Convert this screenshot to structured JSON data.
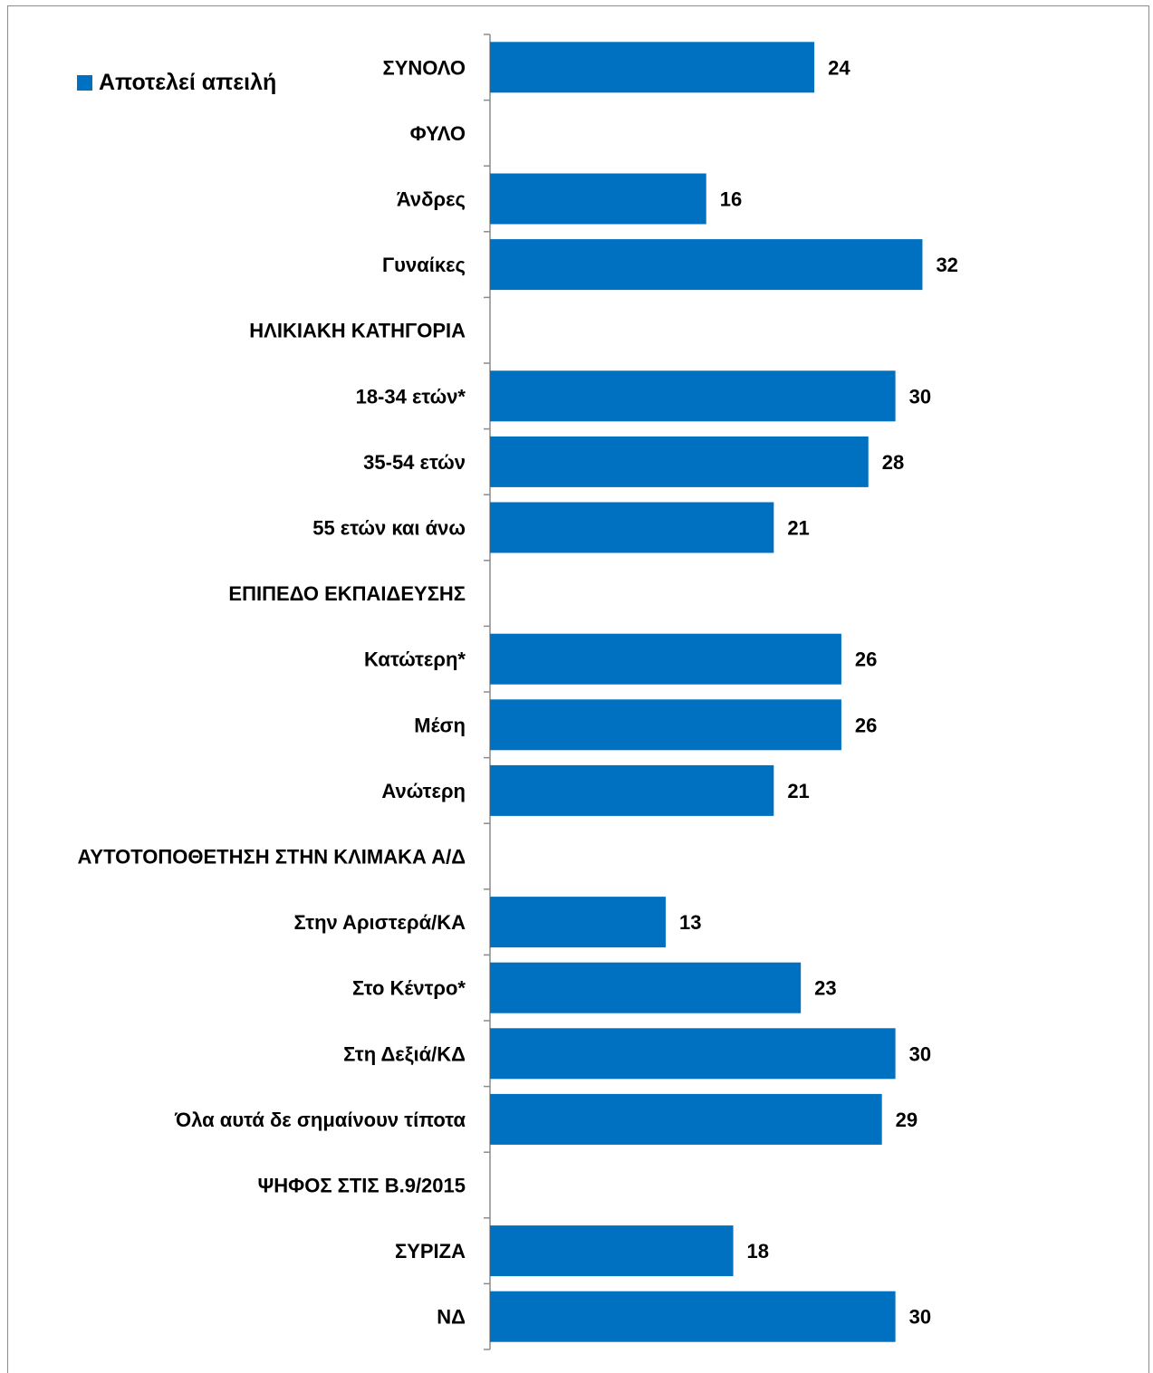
{
  "chart_data": {
    "type": "bar",
    "orientation": "horizontal",
    "legend": {
      "label": "Αποτελεί απειλή",
      "placement": "top-left"
    },
    "series": [
      {
        "name": "Αποτελεί απειλή",
        "color": "#0070C0",
        "values": [
          24,
          null,
          16,
          32,
          null,
          30,
          28,
          21,
          null,
          26,
          26,
          21,
          null,
          13,
          23,
          30,
          29,
          null,
          18,
          30
        ]
      }
    ],
    "categories": [
      "ΣΥΝΟΛΟ",
      "ΦΥΛΟ",
      "Άνδρες",
      "Γυναίκες",
      "ΗΛΙΚΙΑΚΗ ΚΑΤΗΓΟΡΙΑ",
      "18-34 ετών*",
      "35-54 ετών",
      "55 ετών και άνω",
      "ΕΠΙΠΕΔΟ ΕΚΠΑΙΔΕΥΣΗΣ",
      "Κατώτερη*",
      "Μέση",
      "Ανώτερη",
      "ΑΥΤΟΤΟΠΟΘΕΤΗΣΗ ΣΤΗΝ ΚΛΙΜΑΚΑ Α/Δ",
      "Στην Αριστερά/ΚΑ",
      "Στο Κέντρο*",
      "Στη Δεξιά/ΚΔ",
      "Όλα αυτά δε σημαίνουν τίποτα",
      "ΨΗΦΟΣ ΣΤΙΣ Β.9/2015",
      "ΣΥΡΙΖΑ",
      "ΝΔ"
    ],
    "xlim": [
      0,
      40
    ],
    "grid": false,
    "data_labels": true
  }
}
